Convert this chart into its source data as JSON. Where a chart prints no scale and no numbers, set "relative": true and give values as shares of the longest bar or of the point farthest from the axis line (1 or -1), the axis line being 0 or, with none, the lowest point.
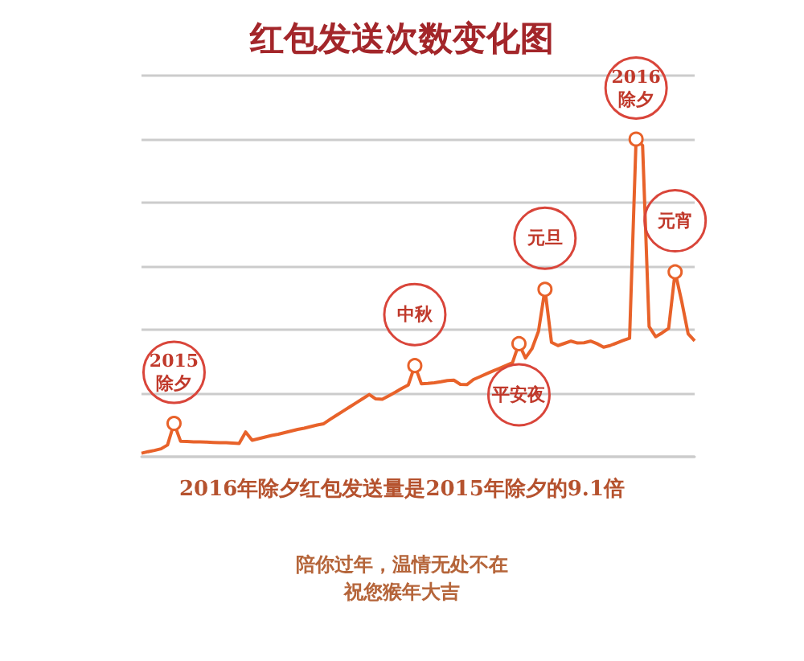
{
  "chart_data": {
    "type": "line",
    "title": "红包发送次数变化图",
    "relative": true,
    "grid": "y",
    "categories": [
      null,
      null,
      null,
      null,
      null,
      null,
      null,
      null,
      null,
      null,
      null,
      null,
      null,
      null,
      null,
      null,
      null,
      null,
      null,
      null,
      null,
      null,
      null,
      null,
      null,
      null,
      null,
      null,
      null,
      null,
      null,
      null,
      null,
      null,
      null,
      null,
      null,
      null,
      null,
      null,
      null,
      null,
      null,
      null,
      null,
      null,
      null,
      null,
      null,
      null,
      null,
      null,
      null,
      null,
      null,
      null,
      null,
      null,
      null,
      null,
      null,
      null,
      null,
      null,
      null,
      null,
      null,
      null,
      null,
      null,
      null,
      null,
      null,
      null,
      null,
      null,
      null,
      null,
      null,
      null,
      null,
      null,
      null,
      null,
      null,
      null
    ],
    "series": [
      {
        "color": "#e8622a",
        "values": [
          0.011,
          0.016,
          0.02,
          0.025,
          0.037,
          0.105,
          0.049,
          0.048,
          0.047,
          0.047,
          0.046,
          0.045,
          0.044,
          0.044,
          0.043,
          0.042,
          0.078,
          0.052,
          0.057,
          0.062,
          0.067,
          0.071,
          0.076,
          0.081,
          0.086,
          0.09,
          0.095,
          0.1,
          0.104,
          0.118,
          0.131,
          0.144,
          0.157,
          0.17,
          0.183,
          0.196,
          0.182,
          0.181,
          0.192,
          0.203,
          0.215,
          0.226,
          0.287,
          0.23,
          0.231,
          0.233,
          0.236,
          0.24,
          0.241,
          0.228,
          0.227,
          0.243,
          0.252,
          0.261,
          0.27,
          0.278,
          0.287,
          0.296,
          0.356,
          0.311,
          0.34,
          0.395,
          0.527,
          0.36,
          0.35,
          0.357,
          0.364,
          0.358,
          0.359,
          0.364,
          0.356,
          0.345,
          0.35,
          0.358,
          0.366,
          0.373,
          1,
          0.98,
          0.41,
          0.378,
          0.39,
          0.404,
          0.582,
          0.49,
          0.387,
          0.365
        ]
      }
    ],
    "annotations": [
      {
        "text": "2015\n除夕",
        "y": 0.105
      },
      {
        "text": "中秋",
        "y": 0.287
      },
      {
        "text": "平安夜",
        "y": 0.356
      },
      {
        "text": "元旦",
        "y": 0.527
      },
      {
        "text": "2016\n除夕",
        "y": 1
      },
      {
        "text": "元宵",
        "y": 0.582
      },
      "2016年除夕红包发送量是2015年除夕的9.1倍",
      "陪你过年，温情无处不在",
      "祝您猴年大吉"
    ]
  }
}
